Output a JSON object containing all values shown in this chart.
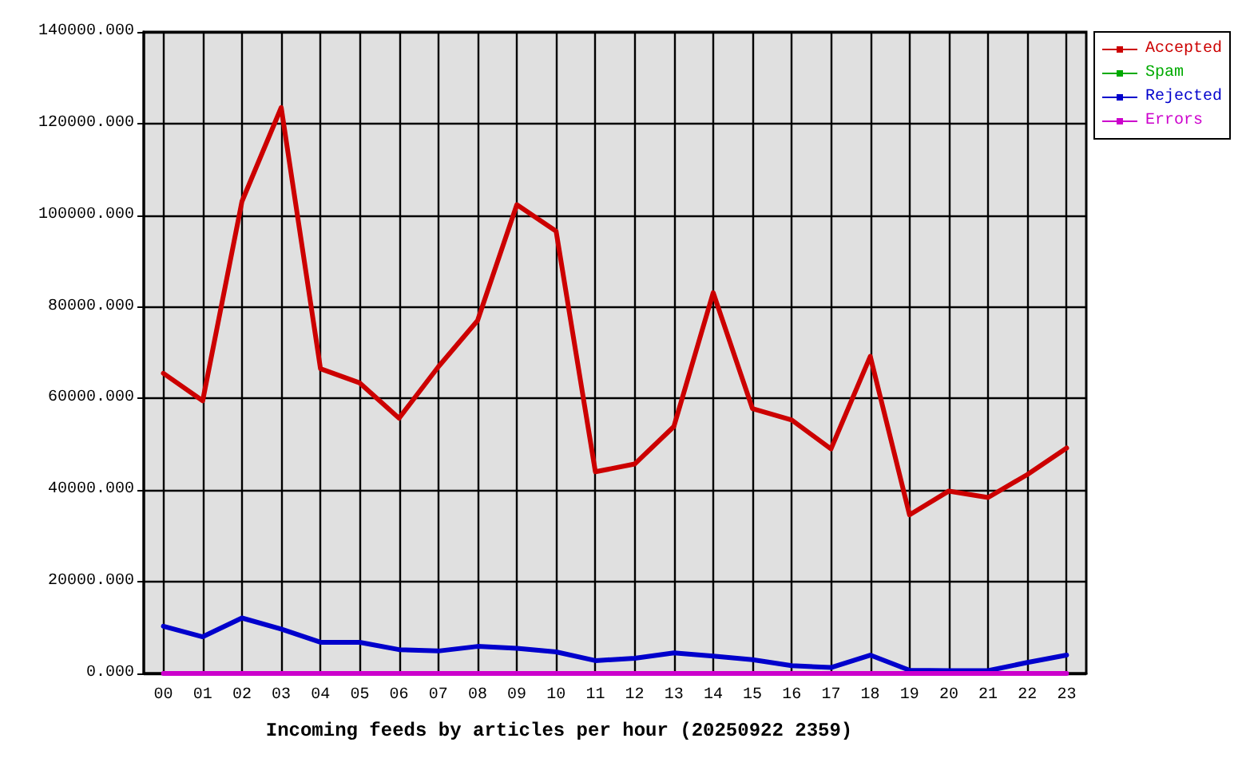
{
  "chart_data": {
    "type": "line",
    "xlabel": "Incoming feeds by articles per hour (20250922 2359)",
    "categories": [
      "00",
      "01",
      "02",
      "03",
      "04",
      "05",
      "06",
      "07",
      "08",
      "09",
      "10",
      "11",
      "12",
      "13",
      "14",
      "15",
      "16",
      "17",
      "18",
      "19",
      "20",
      "21",
      "22",
      "23"
    ],
    "series": [
      {
        "name": "Accepted",
        "color": "#cc0000",
        "values": [
          65500,
          59500,
          103000,
          123500,
          66500,
          63400,
          55700,
          66900,
          77000,
          102300,
          96500,
          44000,
          45700,
          53900,
          83100,
          57800,
          55300,
          49000,
          69200,
          34600,
          39800,
          38400,
          43400,
          49200
        ]
      },
      {
        "name": "Spam",
        "color": "#00aa00",
        "values": [
          null,
          null,
          null,
          null,
          null,
          null,
          null,
          null,
          null,
          null,
          null,
          null,
          null,
          null,
          null,
          null,
          null,
          null,
          null,
          null,
          null,
          null,
          null,
          null
        ]
      },
      {
        "name": "Rejected",
        "color": "#0000cc",
        "values": [
          10300,
          8000,
          12100,
          9700,
          6800,
          6800,
          5200,
          4900,
          5900,
          5500,
          4700,
          2800,
          3300,
          4500,
          3800,
          3000,
          1700,
          1300,
          4000,
          700,
          600,
          600,
          2400,
          4000
        ]
      },
      {
        "name": "Errors",
        "color": "#cc00cc",
        "values": [
          0,
          0,
          0,
          0,
          0,
          0,
          0,
          0,
          0,
          0,
          0,
          0,
          0,
          0,
          0,
          0,
          0,
          0,
          0,
          0,
          0,
          0,
          0,
          0
        ]
      }
    ],
    "ylim": [
      0,
      140000
    ],
    "yticks": [
      {
        "value": 0,
        "label": "0.000"
      },
      {
        "value": 20000,
        "label": "20000.000"
      },
      {
        "value": 40000,
        "label": "40000.000"
      },
      {
        "value": 60000,
        "label": "60000.000"
      },
      {
        "value": 80000,
        "label": "80000.000"
      },
      {
        "value": 100000,
        "label": "100000.000"
      },
      {
        "value": 120000,
        "label": "120000.000"
      },
      {
        "value": 140000,
        "label": "140000.000"
      }
    ],
    "grid": true,
    "legend": "top right",
    "marker": "none",
    "line_style": "solid"
  }
}
